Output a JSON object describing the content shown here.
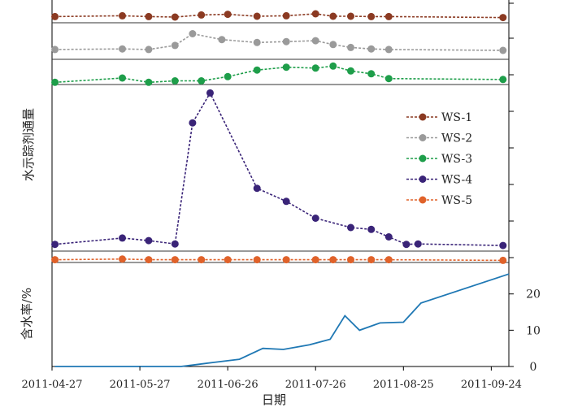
{
  "chart_data": {
    "type": "line",
    "xlabel": "日期",
    "x_ticks": [
      "2011-04-27",
      "2011-05-27",
      "2011-06-26",
      "2011-07-26",
      "2011-08-25",
      "2011-09-24"
    ],
    "xlim": [
      "2011-04-27",
      "2011-09-30"
    ],
    "tracer_panel": {
      "ylabel": "水示踪剂通量",
      "legend_position": "right",
      "series": [
        {
          "name": "WS-1",
          "color": "#8B3A22",
          "x": [
            "2011-04-28",
            "2011-05-21",
            "2011-05-30",
            "2011-06-08",
            "2011-06-17",
            "2011-06-26",
            "2011-07-06",
            "2011-07-16",
            "2011-07-26",
            "2011-08-01",
            "2011-08-07",
            "2011-08-14",
            "2011-08-20",
            "2011-09-28"
          ],
          "y": [
            0.28,
            0.33,
            0.28,
            0.25,
            0.38,
            0.42,
            0.3,
            0.33,
            0.45,
            0.3,
            0.3,
            0.28,
            0.28,
            0.22
          ]
        },
        {
          "name": "WS-2",
          "color": "#9A9A9A",
          "x": [
            "2011-04-28",
            "2011-05-21",
            "2011-05-30",
            "2011-06-08",
            "2011-06-14",
            "2011-06-24",
            "2011-07-06",
            "2011-07-16",
            "2011-07-26",
            "2011-08-01",
            "2011-08-07",
            "2011-08-14",
            "2011-08-20",
            "2011-09-28"
          ],
          "y": [
            0.28,
            0.3,
            0.28,
            0.42,
            0.82,
            0.62,
            0.52,
            0.55,
            0.58,
            0.45,
            0.35,
            0.3,
            0.28,
            0.25
          ]
        },
        {
          "name": "WS-3",
          "color": "#1E9E4A",
          "x": [
            "2011-04-28",
            "2011-05-21",
            "2011-05-30",
            "2011-06-08",
            "2011-06-17",
            "2011-06-26",
            "2011-07-06",
            "2011-07-16",
            "2011-07-26",
            "2011-08-01",
            "2011-08-07",
            "2011-08-14",
            "2011-08-20",
            "2011-09-28"
          ],
          "y": [
            0.05,
            0.2,
            0.05,
            0.1,
            0.1,
            0.25,
            0.48,
            0.58,
            0.55,
            0.62,
            0.45,
            0.35,
            0.18,
            0.15
          ]
        },
        {
          "name": "WS-4",
          "color": "#3A2478",
          "x": [
            "2011-04-28",
            "2011-05-21",
            "2011-05-30",
            "2011-06-08",
            "2011-06-14",
            "2011-06-20",
            "2011-07-06",
            "2011-07-16",
            "2011-07-26",
            "2011-08-07",
            "2011-08-14",
            "2011-08-20",
            "2011-08-26",
            "2011-08-30",
            "2011-09-28"
          ],
          "y": [
            0.5,
            2.2,
            1.5,
            0.6,
            33.0,
            41.0,
            15.5,
            12.0,
            7.5,
            5.0,
            4.5,
            2.5,
            0.5,
            0.6,
            0.2
          ]
        },
        {
          "name": "WS-5",
          "color": "#E0622A",
          "x": [
            "2011-04-28",
            "2011-05-21",
            "2011-05-30",
            "2011-06-08",
            "2011-06-17",
            "2011-06-26",
            "2011-07-06",
            "2011-07-16",
            "2011-07-26",
            "2011-08-01",
            "2011-08-07",
            "2011-08-14",
            "2011-08-20",
            "2011-09-28"
          ],
          "y": [
            0.3,
            0.4,
            0.3,
            0.3,
            0.3,
            0.3,
            0.3,
            0.3,
            0.3,
            0.3,
            0.3,
            0.3,
            0.3,
            0.2
          ]
        }
      ]
    },
    "watercut_panel": {
      "ylabel": "含水率/%",
      "ylim": [
        0,
        28
      ],
      "y_ticks": [
        0,
        10,
        20
      ],
      "series": [
        {
          "color": "#1F78B4",
          "x": [
            "2011-04-28",
            "2011-06-10",
            "2011-06-15",
            "2011-06-22",
            "2011-06-30",
            "2011-07-08",
            "2011-07-15",
            "2011-07-24",
            "2011-07-31",
            "2011-08-05",
            "2011-08-10",
            "2011-08-17",
            "2011-08-25",
            "2011-08-31",
            "2011-09-30"
          ],
          "y": [
            0,
            0,
            0.5,
            1.2,
            2.0,
            5.0,
            4.7,
            6.0,
            7.5,
            14.0,
            10.0,
            12.0,
            12.2,
            17.5,
            25.5
          ]
        }
      ]
    }
  }
}
